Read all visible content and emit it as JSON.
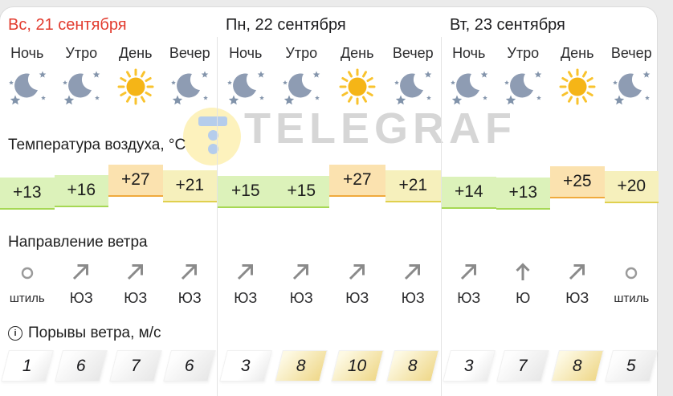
{
  "watermark": {
    "text": "TELEGRAF"
  },
  "labels": {
    "temperature": "Температура воздуха, °С",
    "wind_direction": "Направление ветра",
    "wind_gusts": "Порывы ветра, м/с",
    "info_icon_glyph": "i"
  },
  "colors": {
    "date_highlight": "#e23b2e",
    "date_default": "#1d1d1f",
    "brand_circle": "#fdf2bd",
    "brand_logo": "#b5cdec",
    "brand_text": "#d6d6d6",
    "temp_tones": {
      "green": {
        "fill": "#dcf2ba",
        "edge": "#a6d854"
      },
      "yellow": {
        "fill": "#f6f0bc",
        "edge": "#e0d04e"
      },
      "orange": {
        "fill": "#fbe2af",
        "edge": "#f0aa3d"
      }
    }
  },
  "days": [
    {
      "date": "Вс, 21 сентября",
      "highlight": true,
      "slots": [
        {
          "time": "Ночь",
          "icon": "moon",
          "temp": "+13",
          "temp_value": 13,
          "temp_tone": "green",
          "wind_dir": "штиль",
          "wind_icon": "calm",
          "gust": "1",
          "gust_tier": "calm"
        },
        {
          "time": "Утро",
          "icon": "moon",
          "temp": "+16",
          "temp_value": 16,
          "temp_tone": "green",
          "wind_dir": "ЮЗ",
          "wind_icon": "arrow-ne",
          "gust": "6",
          "gust_tier": "light"
        },
        {
          "time": "День",
          "icon": "sun",
          "temp": "+27",
          "temp_value": 27,
          "temp_tone": "orange",
          "wind_dir": "ЮЗ",
          "wind_icon": "arrow-ne",
          "gust": "7",
          "gust_tier": "light"
        },
        {
          "time": "Вечер",
          "icon": "moon",
          "temp": "+21",
          "temp_value": 21,
          "temp_tone": "yellow",
          "wind_dir": "ЮЗ",
          "wind_icon": "arrow-ne",
          "gust": "6",
          "gust_tier": "light"
        }
      ]
    },
    {
      "date": "Пн, 22 сентября",
      "highlight": false,
      "slots": [
        {
          "time": "Ночь",
          "icon": "moon",
          "temp": "+15",
          "temp_value": 15,
          "temp_tone": "green",
          "wind_dir": "ЮЗ",
          "wind_icon": "arrow-ne",
          "gust": "3",
          "gust_tier": "calm"
        },
        {
          "time": "Утро",
          "icon": "moon",
          "temp": "+15",
          "temp_value": 15,
          "temp_tone": "green",
          "wind_dir": "ЮЗ",
          "wind_icon": "arrow-ne",
          "gust": "8",
          "gust_tier": "strong"
        },
        {
          "time": "День",
          "icon": "sun",
          "temp": "+27",
          "temp_value": 27,
          "temp_tone": "orange",
          "wind_dir": "ЮЗ",
          "wind_icon": "arrow-ne",
          "gust": "10",
          "gust_tier": "strong"
        },
        {
          "time": "Вечер",
          "icon": "moon",
          "temp": "+21",
          "temp_value": 21,
          "temp_tone": "yellow",
          "wind_dir": "ЮЗ",
          "wind_icon": "arrow-ne",
          "gust": "8",
          "gust_tier": "strong"
        }
      ]
    },
    {
      "date": "Вт, 23 сентября",
      "highlight": false,
      "slots": [
        {
          "time": "Ночь",
          "icon": "moon",
          "temp": "+14",
          "temp_value": 14,
          "temp_tone": "green",
          "wind_dir": "ЮЗ",
          "wind_icon": "arrow-ne",
          "gust": "3",
          "gust_tier": "calm"
        },
        {
          "time": "Утро",
          "icon": "moon",
          "temp": "+13",
          "temp_value": 13,
          "temp_tone": "green",
          "wind_dir": "Ю",
          "wind_icon": "arrow-up",
          "gust": "7",
          "gust_tier": "light"
        },
        {
          "time": "День",
          "icon": "sun",
          "temp": "+25",
          "temp_value": 25,
          "temp_tone": "orange",
          "wind_dir": "ЮЗ",
          "wind_icon": "arrow-ne",
          "gust": "8",
          "gust_tier": "strong"
        },
        {
          "time": "Вечер",
          "icon": "moon",
          "temp": "+20",
          "temp_value": 20,
          "temp_tone": "yellow",
          "wind_dir": "штиль",
          "wind_icon": "calm",
          "gust": "5",
          "gust_tier": "light"
        }
      ]
    }
  ]
}
